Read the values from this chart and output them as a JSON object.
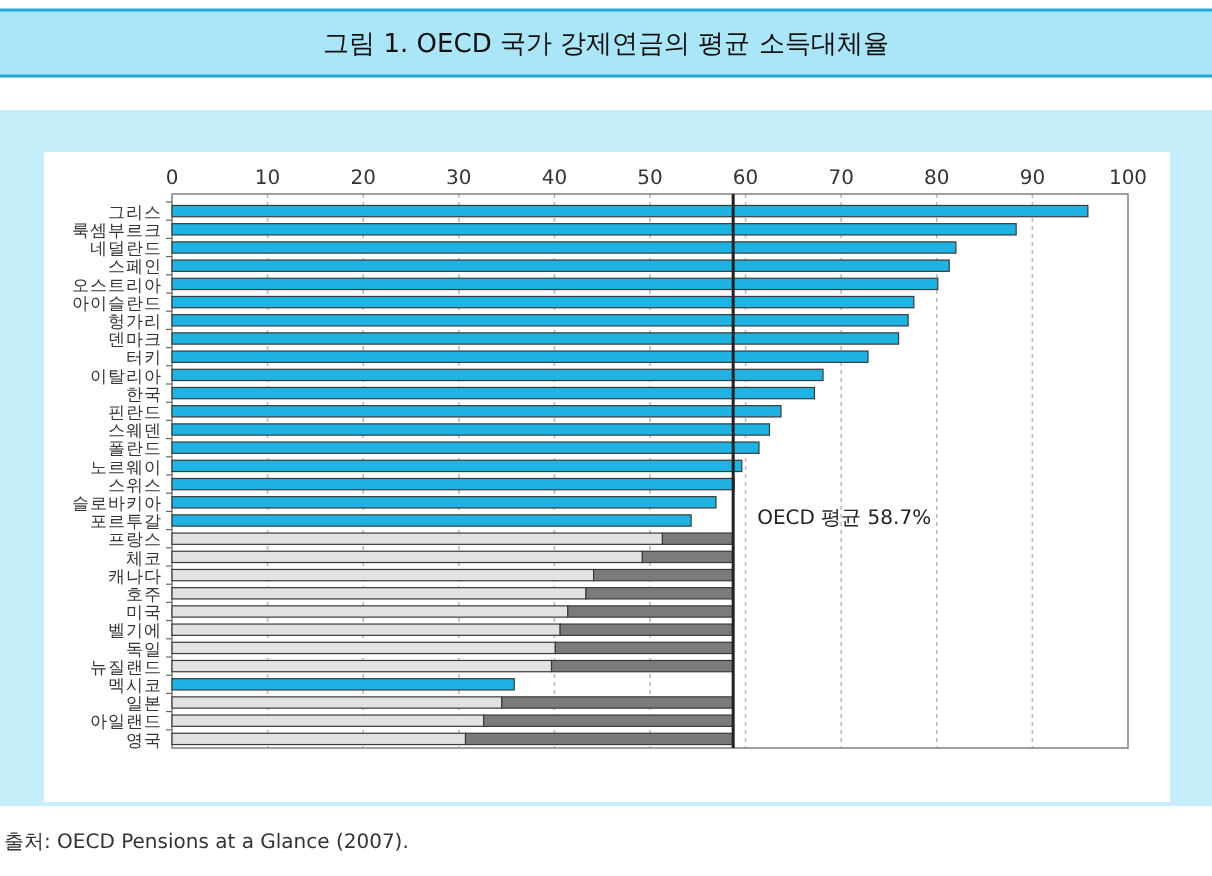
{
  "chart_data": {
    "type": "bar",
    "orientation": "horizontal",
    "stacked": true,
    "title": "그림 1. OECD 국가 강제연금의 평균 소득대체율",
    "categories": [
      "그리스",
      "룩셈부르크",
      "네덜란드",
      "스페인",
      "오스트리아",
      "아이슬란드",
      "헝가리",
      "덴마크",
      "터키",
      "이탈리아",
      "한국",
      "핀란드",
      "스웨덴",
      "폴란드",
      "노르웨이",
      "스위스",
      "슬로바키아",
      "포르투갈",
      "프랑스",
      "체코",
      "캐나다",
      "호주",
      "미국",
      "벨기에",
      "독일",
      "뉴질랜드",
      "멕시코",
      "일본",
      "아일랜드",
      "영국"
    ],
    "series": [
      {
        "values": [
          95.8,
          88.3,
          82.0,
          81.3,
          80.1,
          77.6,
          77.0,
          76.0,
          72.8,
          68.1,
          67.2,
          63.7,
          62.5,
          61.4,
          59.6,
          58.8,
          56.9,
          54.3,
          51.3,
          49.2,
          44.1,
          43.3,
          41.4,
          40.6,
          40.1,
          39.7,
          35.8,
          34.5,
          32.6,
          30.7
        ],
        "colors": [
          "#1fb3e3",
          "#1fb3e3",
          "#1fb3e3",
          "#1fb3e3",
          "#1fb3e3",
          "#1fb3e3",
          "#1fb3e3",
          "#1fb3e3",
          "#1fb3e3",
          "#1fb3e3",
          "#1fb3e3",
          "#1fb3e3",
          "#1fb3e3",
          "#1fb3e3",
          "#1fb3e3",
          "#1fb3e3",
          "#1fb3e3",
          "#1fb3e3",
          "#e2e2e2",
          "#e2e2e2",
          "#e2e2e2",
          "#e2e2e2",
          "#e2e2e2",
          "#e2e2e2",
          "#e2e2e2",
          "#e2e2e2",
          "#1fb3e3",
          "#e2e2e2",
          "#e2e2e2",
          "#e2e2e2"
        ]
      },
      {
        "color": "#7b7b7b",
        "values": [
          null,
          null,
          null,
          null,
          null,
          null,
          null,
          null,
          null,
          null,
          null,
          null,
          null,
          null,
          null,
          null,
          null,
          null,
          7.4,
          9.5,
          14.6,
          15.4,
          17.3,
          18.1,
          18.6,
          19.0,
          null,
          24.2,
          26.1,
          28.0
        ]
      }
    ],
    "xlim": [
      0,
      100
    ],
    "xticks": [
      0,
      10,
      20,
      30,
      40,
      50,
      60,
      70,
      80,
      90,
      100
    ],
    "grid": "x",
    "ref_lines": [
      {
        "axis": "x",
        "value": 58.7,
        "label": "OECD 평균 58.7%",
        "color": "#222222"
      }
    ],
    "annotations": [
      "출처: OECD Pensions at a Glance (2007)."
    ]
  }
}
